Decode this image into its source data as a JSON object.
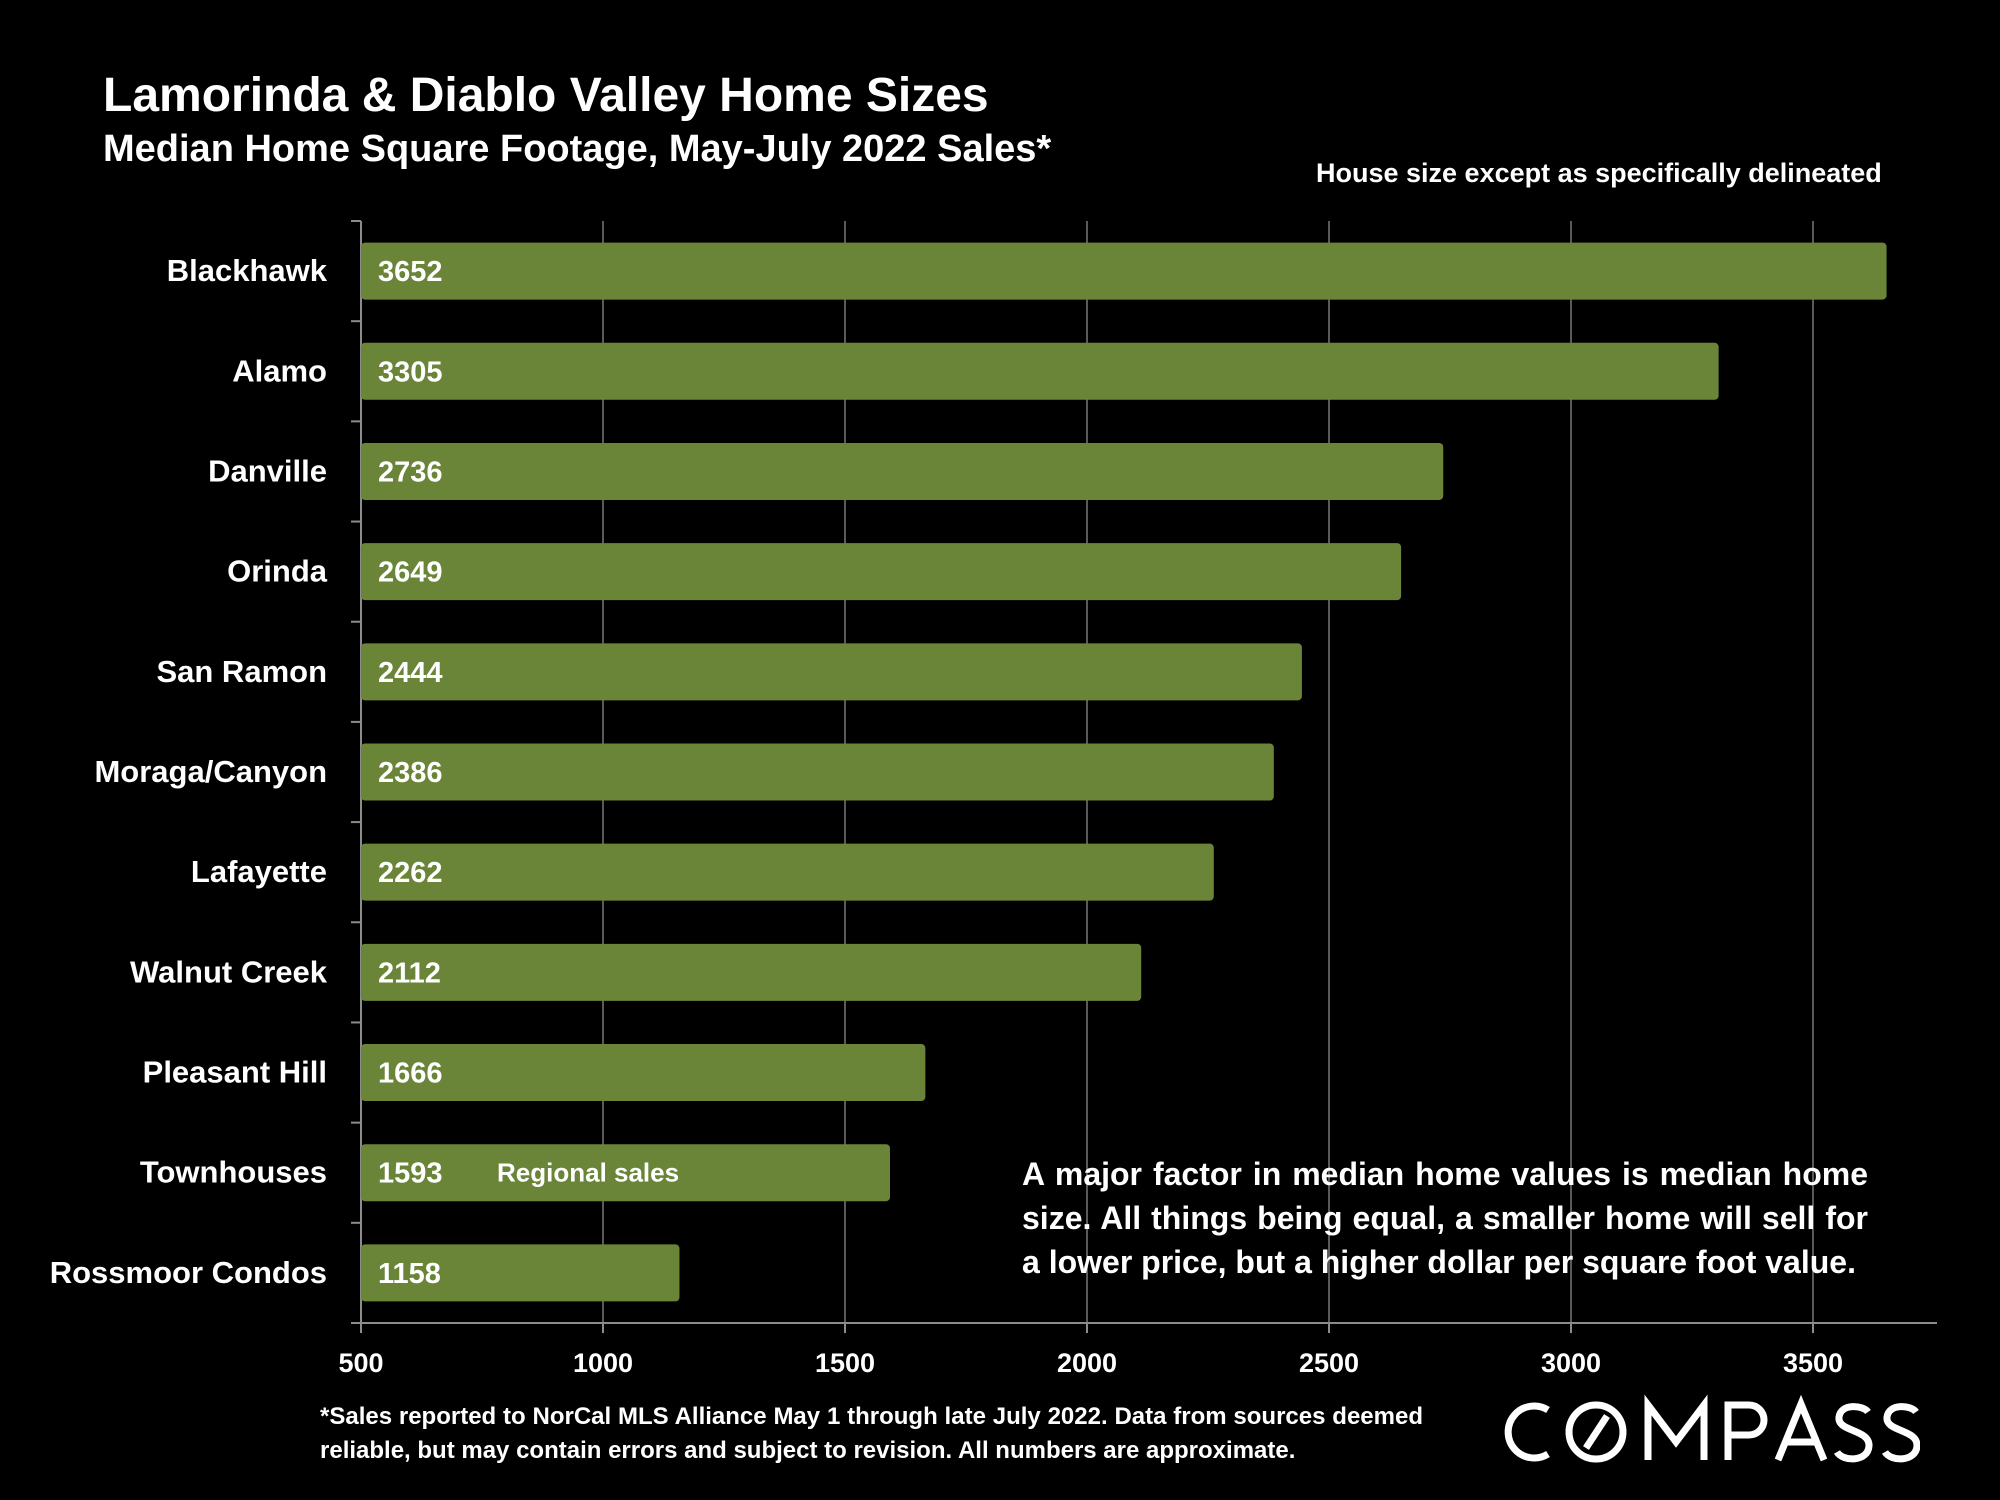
{
  "header": {
    "title": "Lamorinda & Diablo Valley Home Sizes",
    "subtitle": "Median Home Square Footage, May-July 2022 Sales*",
    "note": "House size except as specifically delineated"
  },
  "annotation": "A major factor in median home values is median home size. All things being equal, a smaller home will sell for a lower price, but a higher dollar per square foot value.",
  "footnote": "*Sales reported to NorCal MLS Alliance May 1 through late July 2022. Data from sources deemed reliable, but may contain errors and subject to revision. All numbers are approximate.",
  "logo": {
    "text": "COMPASS"
  },
  "colors": {
    "background": "#000000",
    "bar": "#6b8538",
    "grid": "#5a5a5a",
    "text": "#ffffff"
  },
  "chart_data": {
    "type": "bar",
    "orientation": "horizontal",
    "categories": [
      "Blackhawk",
      "Alamo",
      "Danville",
      "Orinda",
      "San Ramon",
      "Moraga/Canyon",
      "Lafayette",
      "Walnut Creek",
      "Pleasant Hill",
      "Townhouses",
      "Rossmoor Condos"
    ],
    "values": [
      3652,
      3305,
      2736,
      2649,
      2444,
      2386,
      2262,
      2112,
      1666,
      1593,
      1158
    ],
    "bar_annotations": [
      {
        "category": "Townhouses",
        "text": "Regional sales"
      }
    ],
    "xticks": [
      500,
      1000,
      1500,
      2000,
      2500,
      3000,
      3500
    ],
    "xlim": [
      500,
      3700
    ],
    "grid": true,
    "legend": "none",
    "title": "Lamorinda & Diablo Valley Home Sizes",
    "xlabel": "",
    "ylabel": ""
  }
}
